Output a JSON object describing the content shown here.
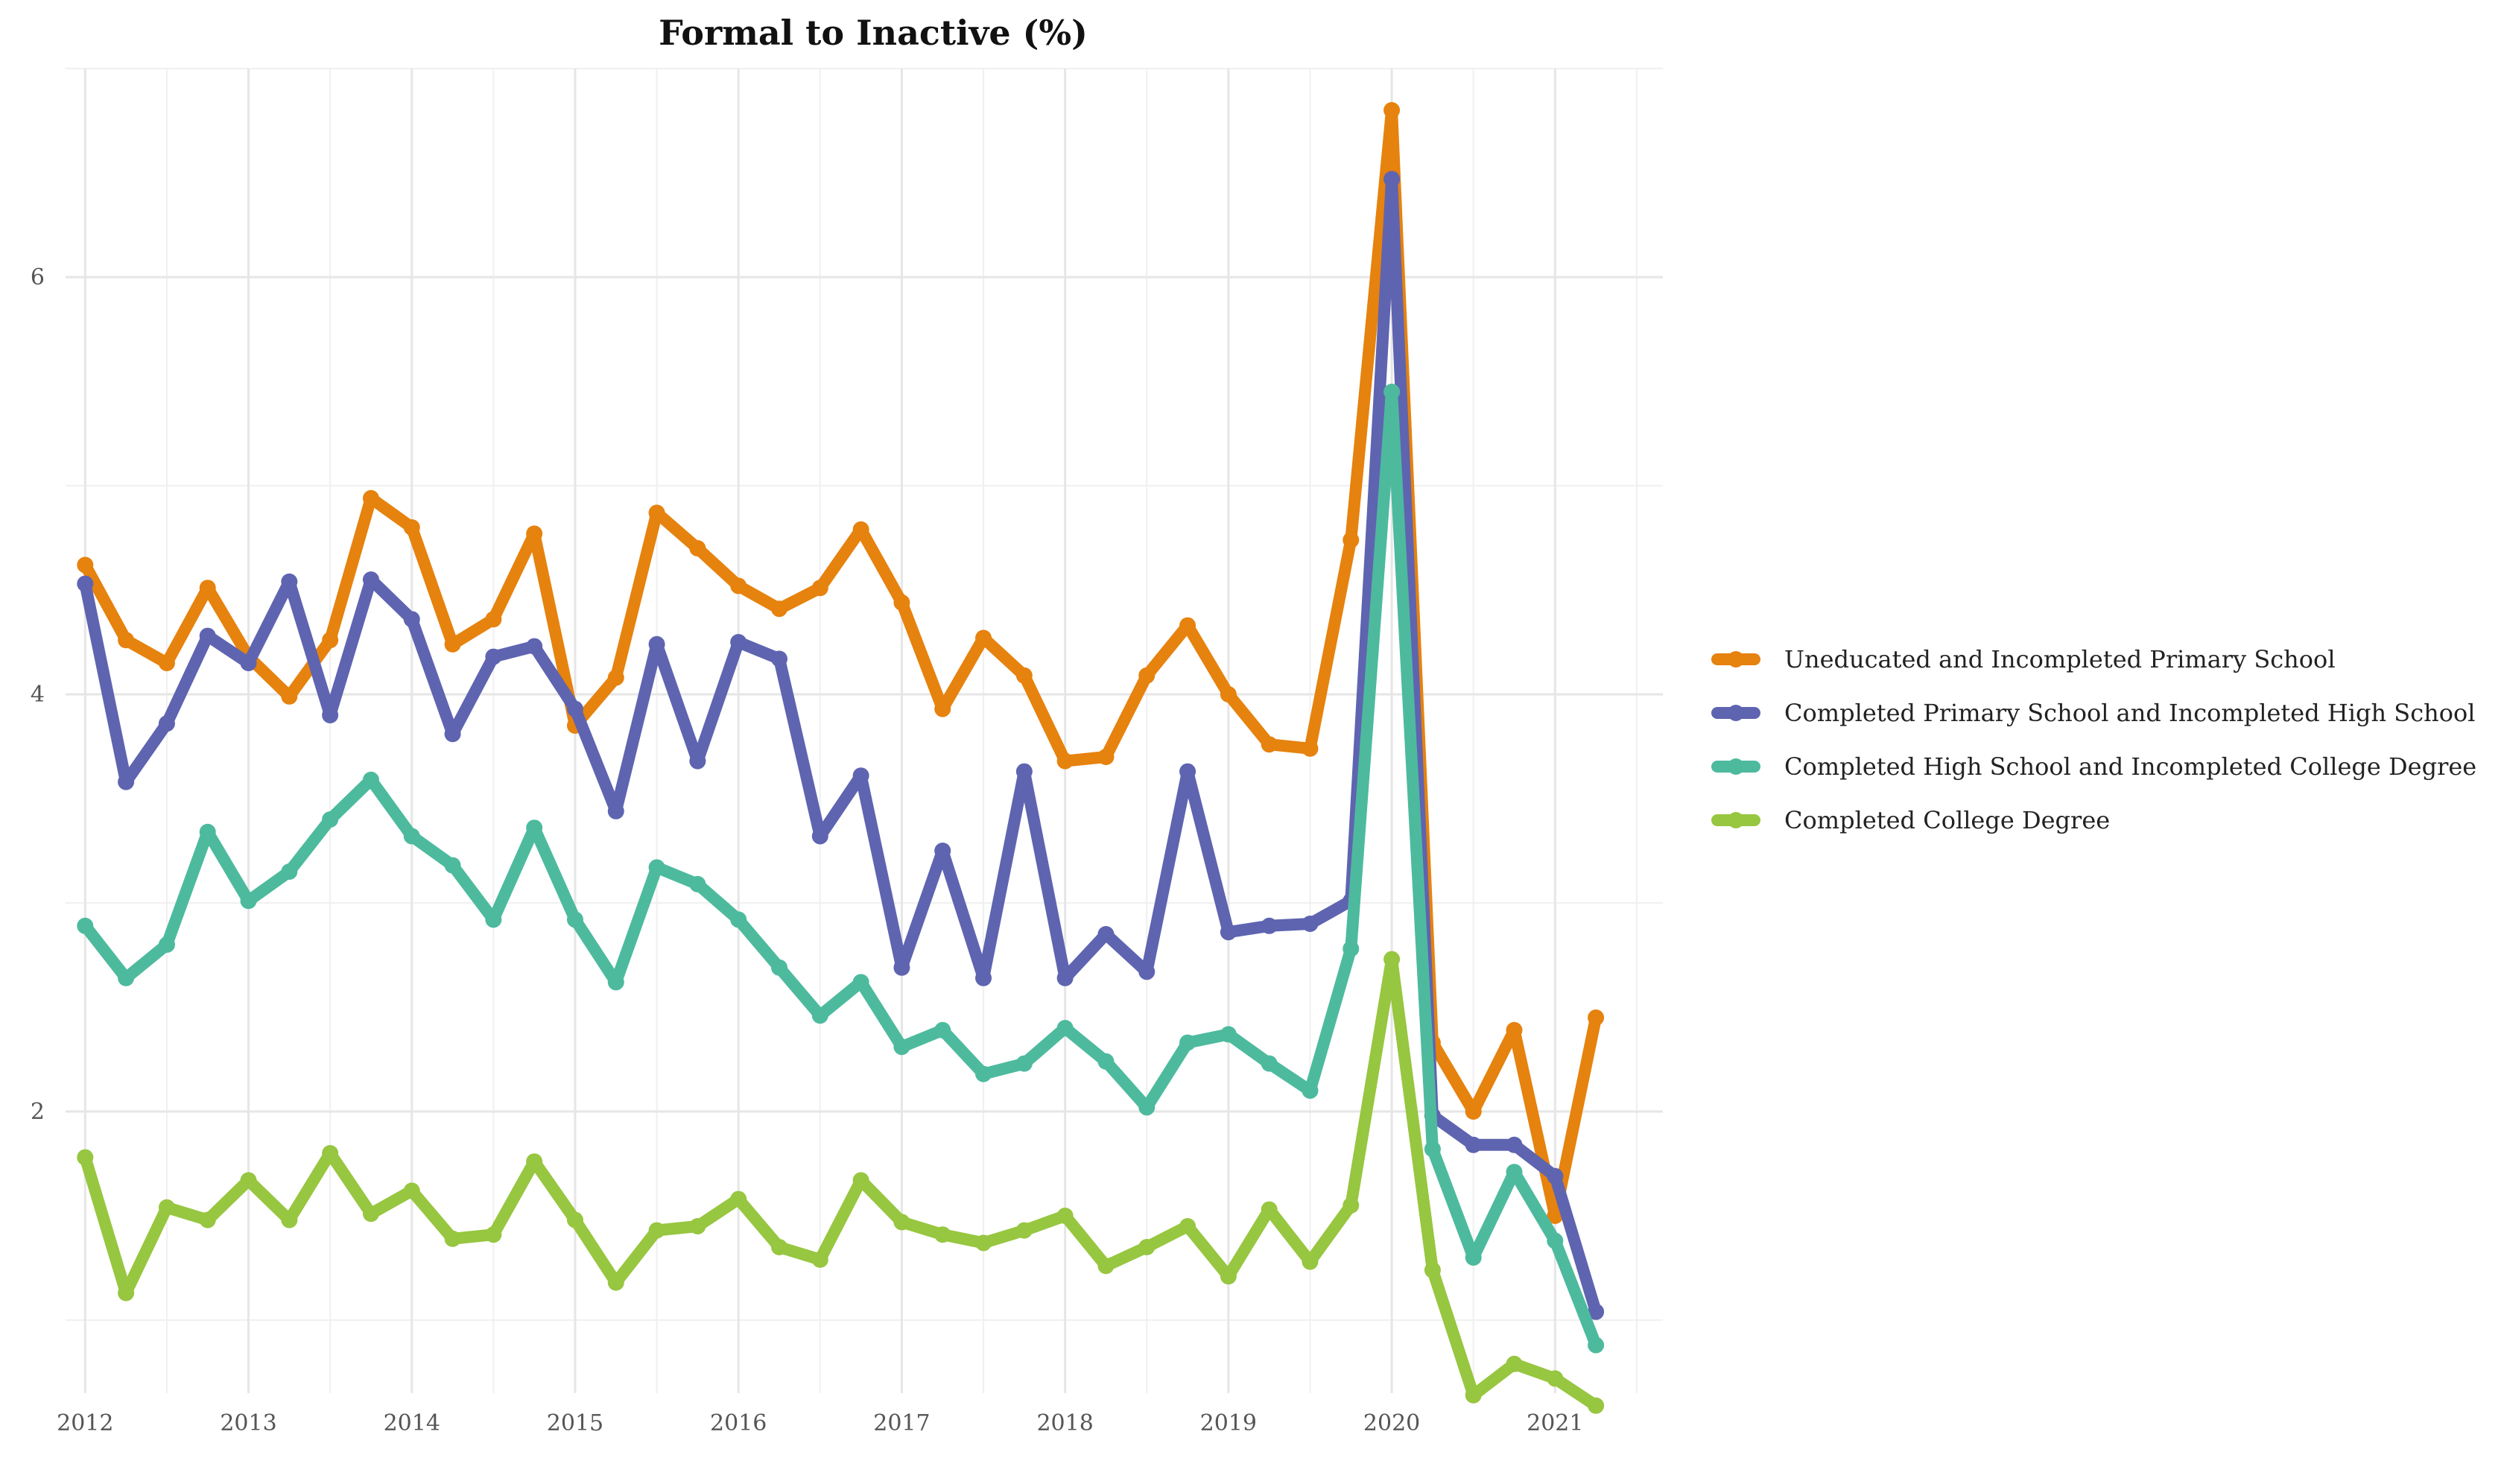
{
  "chart_data": {
    "type": "line",
    "title": "Formal to Inactive (%)",
    "xlabel": "",
    "ylabel": "",
    "x": [
      2012.0,
      2012.25,
      2012.5,
      2012.75,
      2013.0,
      2013.25,
      2013.5,
      2013.75,
      2014.0,
      2014.25,
      2014.5,
      2014.75,
      2015.0,
      2015.25,
      2015.5,
      2015.75,
      2016.0,
      2016.25,
      2016.5,
      2016.75,
      2017.0,
      2017.25,
      2017.5,
      2017.75,
      2018.0,
      2018.25,
      2018.5,
      2018.75,
      2019.0,
      2019.25,
      2019.5,
      2019.75,
      2020.0,
      2020.25,
      2020.5,
      2020.75,
      2021.0,
      2021.25
    ],
    "xlim": [
      2011.88,
      2021.66
    ],
    "ylim": [
      0.65,
      7.0
    ],
    "x_ticks": [
      "2012",
      "2013",
      "2014",
      "2015",
      "2016",
      "2017",
      "2018",
      "2019",
      "2020",
      "2021"
    ],
    "y_ticks": [
      "2",
      "4",
      "6"
    ],
    "grid": true,
    "legend_position": "right",
    "series": [
      {
        "name": "Uneducated and Incompleted Primary School",
        "color": "#E6820E",
        "values": [
          4.62,
          4.26,
          4.15,
          4.51,
          4.18,
          3.99,
          4.26,
          4.94,
          4.8,
          4.24,
          4.36,
          4.77,
          3.85,
          4.08,
          4.87,
          4.7,
          4.52,
          4.41,
          4.51,
          4.79,
          4.44,
          3.93,
          4.27,
          4.09,
          3.68,
          3.7,
          4.09,
          4.33,
          4.0,
          3.76,
          3.74,
          4.74,
          6.8,
          2.33,
          2.0,
          2.39,
          1.5,
          2.45
        ]
      },
      {
        "name": "Completed Primary School and Incompleted High School",
        "color": "#5E64B0",
        "values": [
          4.53,
          3.58,
          3.86,
          4.28,
          4.15,
          4.54,
          3.9,
          4.55,
          4.36,
          3.81,
          4.18,
          4.23,
          3.93,
          3.44,
          4.24,
          3.68,
          4.25,
          4.17,
          3.32,
          3.61,
          2.69,
          3.25,
          2.64,
          3.63,
          2.64,
          2.85,
          2.67,
          3.63,
          2.86,
          2.89,
          2.9,
          3.01,
          6.47,
          1.98,
          1.84,
          1.84,
          1.69,
          1.04
        ]
      },
      {
        "name": "Completed High School and Incompleted College Degree",
        "color": "#4DBA9E",
        "values": [
          2.89,
          2.64,
          2.8,
          3.34,
          3.01,
          3.15,
          3.4,
          3.59,
          3.32,
          3.18,
          2.92,
          3.36,
          2.92,
          2.62,
          3.17,
          3.09,
          2.92,
          2.69,
          2.46,
          2.62,
          2.31,
          2.39,
          2.18,
          2.23,
          2.4,
          2.24,
          2.02,
          2.33,
          2.37,
          2.23,
          2.1,
          2.78,
          5.45,
          1.82,
          1.3,
          1.71,
          1.38,
          0.88
        ]
      },
      {
        "name": "Completed College Degree",
        "color": "#97C640",
        "values": [
          1.78,
          1.13,
          1.54,
          1.48,
          1.67,
          1.48,
          1.8,
          1.51,
          1.62,
          1.39,
          1.41,
          1.76,
          1.48,
          1.18,
          1.43,
          1.45,
          1.58,
          1.35,
          1.29,
          1.67,
          1.47,
          1.41,
          1.37,
          1.43,
          1.5,
          1.26,
          1.35,
          1.45,
          1.21,
          1.53,
          1.28,
          1.55,
          2.73,
          1.24,
          0.64,
          0.79,
          0.72,
          0.59
        ]
      }
    ]
  }
}
